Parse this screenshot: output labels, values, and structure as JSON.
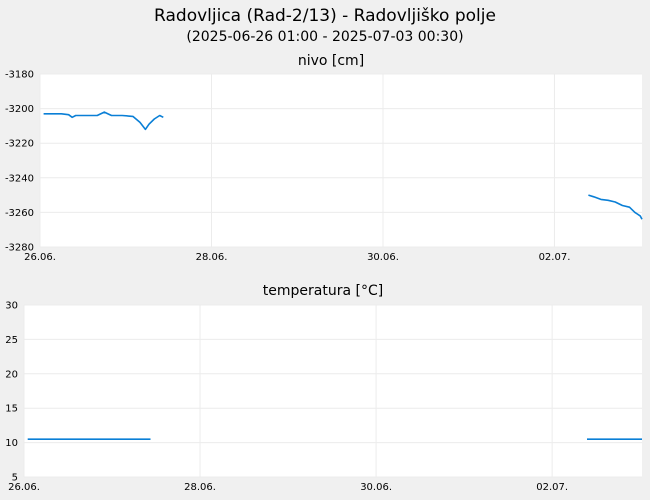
{
  "header": {
    "title": "Radovljica (Rad-2/13) - Radovljiško polje",
    "subtitle": "(2025-06-26 01:00 - 2025-07-03 00:30)"
  },
  "chart_data": [
    {
      "type": "line",
      "title": "nivo [cm]",
      "xlabel": "",
      "ylabel": "",
      "x_range": [
        "2025-06-26 00:00",
        "2025-07-03 00:30"
      ],
      "ylim": [
        -3280,
        -3180
      ],
      "y_ticks": [
        "-3180",
        "-3200",
        "-3220",
        "-3240",
        "-3260",
        "-3280"
      ],
      "x_ticks": [
        {
          "label": "26.06.",
          "date": "2025-06-26 00:00"
        },
        {
          "label": "28.06.",
          "date": "2025-06-28 00:00"
        },
        {
          "label": "30.06.",
          "date": "2025-06-30 00:00"
        },
        {
          "label": "02.07.",
          "date": "2025-07-02 00:00"
        }
      ],
      "grid": true,
      "color": "#0a7fd6",
      "segments": [
        [
          [
            "2025-06-26 01:00",
            -3203
          ],
          [
            "2025-06-26 06:00",
            -3203
          ],
          [
            "2025-06-26 08:00",
            -3203.5
          ],
          [
            "2025-06-26 09:00",
            -3205
          ],
          [
            "2025-06-26 10:00",
            -3204
          ],
          [
            "2025-06-26 16:00",
            -3204
          ],
          [
            "2025-06-26 18:00",
            -3202
          ],
          [
            "2025-06-26 20:00",
            -3204
          ],
          [
            "2025-06-26 23:00",
            -3204
          ],
          [
            "2025-06-27 02:00",
            -3204.5
          ],
          [
            "2025-06-27 04:00",
            -3208
          ],
          [
            "2025-06-27 05:30",
            -3212
          ],
          [
            "2025-06-27 06:30",
            -3209
          ],
          [
            "2025-06-27 08:00",
            -3206
          ],
          [
            "2025-06-27 09:30",
            -3204
          ],
          [
            "2025-06-27 10:30",
            -3205
          ]
        ],
        [
          [
            "2025-07-02 09:30",
            -3250
          ],
          [
            "2025-07-02 11:00",
            -3251
          ],
          [
            "2025-07-02 13:00",
            -3252.5
          ],
          [
            "2025-07-02 15:00",
            -3253
          ],
          [
            "2025-07-02 17:00",
            -3254
          ],
          [
            "2025-07-02 19:00",
            -3256
          ],
          [
            "2025-07-02 21:00",
            -3257
          ],
          [
            "2025-07-02 22:30",
            -3260
          ],
          [
            "2025-07-03 00:00",
            -3262
          ],
          [
            "2025-07-03 00:30",
            -3264
          ]
        ]
      ]
    },
    {
      "type": "line",
      "title": "temperatura [°C]",
      "xlabel": "",
      "ylabel": "",
      "x_range": [
        "2025-06-26 00:00",
        "2025-07-03 00:30"
      ],
      "ylim": [
        5,
        30
      ],
      "y_ticks": [
        "30",
        "25",
        "20",
        "15",
        "10",
        "5"
      ],
      "x_ticks": [
        {
          "label": "26.06.",
          "date": "2025-06-26 00:00"
        },
        {
          "label": "28.06.",
          "date": "2025-06-28 00:00"
        },
        {
          "label": "30.06.",
          "date": "2025-06-30 00:00"
        },
        {
          "label": "02.07.",
          "date": "2025-07-02 00:00"
        }
      ],
      "grid": true,
      "color": "#0a7fd6",
      "segments": [
        [
          [
            "2025-06-26 01:00",
            10.5
          ],
          [
            "2025-06-27 10:30",
            10.5
          ]
        ],
        [
          [
            "2025-07-02 09:30",
            10.5
          ],
          [
            "2025-07-03 00:30",
            10.5
          ]
        ]
      ]
    }
  ]
}
